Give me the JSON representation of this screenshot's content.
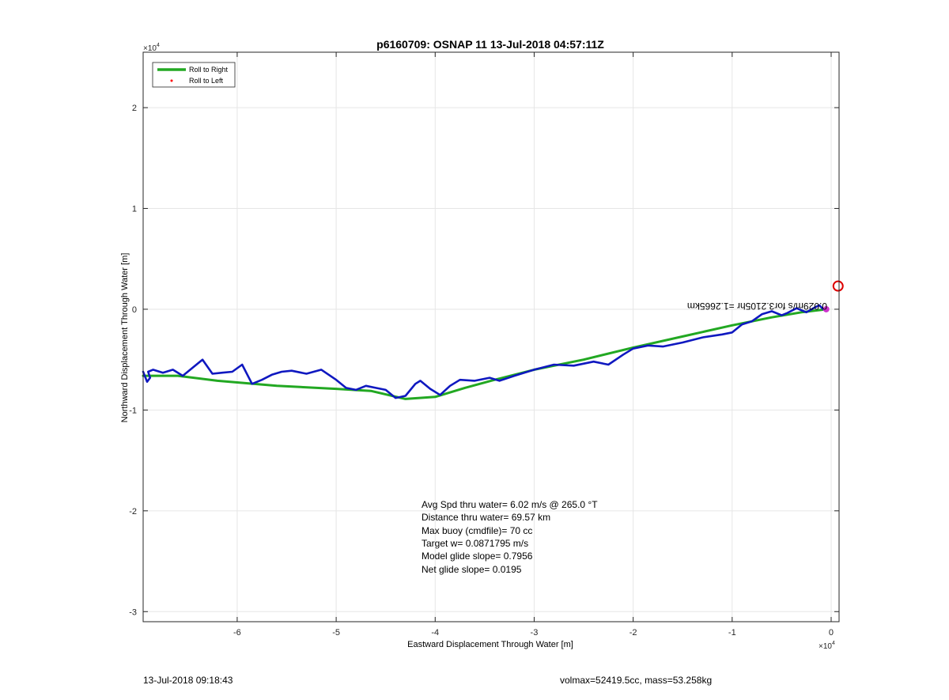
{
  "chart_data": {
    "type": "line",
    "title": "p6160709: OSNAP 11 13-Jul-2018 04:57:11Z",
    "xlabel": "Eastward Displacement Through Water [m]",
    "ylabel": "Northward Displacement Through Water [m]",
    "x_exponent_label": "×10",
    "y_exponent_label": "×10",
    "exponent": "4",
    "xlim": [
      -6.95,
      0.08
    ],
    "ylim": [
      -3.1,
      2.55
    ],
    "x_ticks": [
      -6,
      -5,
      -4,
      -3,
      -2,
      -1,
      0
    ],
    "y_ticks": [
      -3,
      -2,
      -1,
      0,
      1,
      2
    ],
    "x_tick_labels": [
      "-6",
      "-5",
      "-4",
      "-3",
      "-2",
      "-1",
      "0"
    ],
    "y_tick_labels": [
      "-3",
      "-2",
      "-1",
      "0",
      "1",
      "2"
    ],
    "grid": true,
    "legend": {
      "placement": "top-left",
      "entries": [
        {
          "name": "Roll to Right",
          "color": "#22a822",
          "style": "line"
        },
        {
          "name": "Roll to Left",
          "color": "#ff0000",
          "style": "dot"
        }
      ]
    },
    "series": [
      {
        "name": "Roll to Right",
        "color": "#22a822",
        "x": [
          -6.95,
          -6.6,
          -6.2,
          -5.6,
          -5.0,
          -4.65,
          -4.3,
          -4.0,
          -3.7,
          -3.4,
          -3.0,
          -2.5,
          -2.0,
          -1.5,
          -1.0,
          -0.6,
          -0.3,
          -0.05
        ],
        "y": [
          -0.66,
          -0.66,
          -0.71,
          -0.76,
          -0.79,
          -0.81,
          -0.89,
          -0.87,
          -0.78,
          -0.7,
          -0.6,
          -0.5,
          -0.38,
          -0.27,
          -0.16,
          -0.08,
          -0.03,
          0.0
        ]
      },
      {
        "name": "track",
        "color": "#0f18c0",
        "x": [
          -6.95,
          -6.91,
          -6.88,
          -6.9,
          -6.85,
          -6.75,
          -6.65,
          -6.55,
          -6.45,
          -6.35,
          -6.25,
          -6.15,
          -6.05,
          -5.95,
          -5.85,
          -5.75,
          -5.65,
          -5.55,
          -5.45,
          -5.3,
          -5.15,
          -5.0,
          -4.9,
          -4.8,
          -4.7,
          -4.6,
          -4.5,
          -4.4,
          -4.3,
          -4.2,
          -4.15,
          -4.05,
          -3.95,
          -3.85,
          -3.75,
          -3.6,
          -3.45,
          -3.35,
          -3.2,
          -3.0,
          -2.8,
          -2.6,
          -2.4,
          -2.25,
          -2.1,
          -2.0,
          -1.85,
          -1.7,
          -1.5,
          -1.3,
          -1.1,
          -1.0,
          -0.9,
          -0.8,
          -0.7,
          -0.6,
          -0.5,
          -0.45,
          -0.35,
          -0.25,
          -0.18,
          -0.12,
          -0.08
        ],
        "y": [
          -0.62,
          -0.72,
          -0.68,
          -0.62,
          -0.6,
          -0.63,
          -0.6,
          -0.66,
          -0.58,
          -0.5,
          -0.64,
          -0.63,
          -0.62,
          -0.55,
          -0.74,
          -0.7,
          -0.65,
          -0.62,
          -0.61,
          -0.64,
          -0.6,
          -0.7,
          -0.78,
          -0.8,
          -0.76,
          -0.78,
          -0.8,
          -0.88,
          -0.86,
          -0.74,
          -0.71,
          -0.79,
          -0.85,
          -0.76,
          -0.7,
          -0.71,
          -0.68,
          -0.71,
          -0.66,
          -0.6,
          -0.55,
          -0.56,
          -0.52,
          -0.55,
          -0.45,
          -0.39,
          -0.36,
          -0.37,
          -0.33,
          -0.28,
          -0.25,
          -0.23,
          -0.15,
          -0.12,
          -0.05,
          -0.02,
          -0.06,
          -0.04,
          0.01,
          -0.03,
          0.01,
          0.04,
          0.0
        ]
      }
    ],
    "markers": [
      {
        "name": "end-circle",
        "x": 0.07,
        "y": 0.23,
        "color": "#dd0000"
      },
      {
        "name": "start-point",
        "x": -0.05,
        "y": 0.0,
        "color": "#cc33cc"
      }
    ],
    "annotations": {
      "flipped": "0.029m/s for3.2105hr =1.2665km",
      "stats": [
        "Avg Spd thru water=  6.02 m/s @ 265.0 °T",
        "Distance thru water= 69.57 km",
        "Max buoy (cmdfile)= 70 cc",
        "Target w= 0.0871795 m/s",
        "Model glide slope= 0.7956",
        "Net glide slope= 0.0195"
      ]
    }
  },
  "footer": {
    "left": "13-Jul-2018 09:18:43",
    "right": "volmax=52419.5cc, mass=53.258kg"
  }
}
